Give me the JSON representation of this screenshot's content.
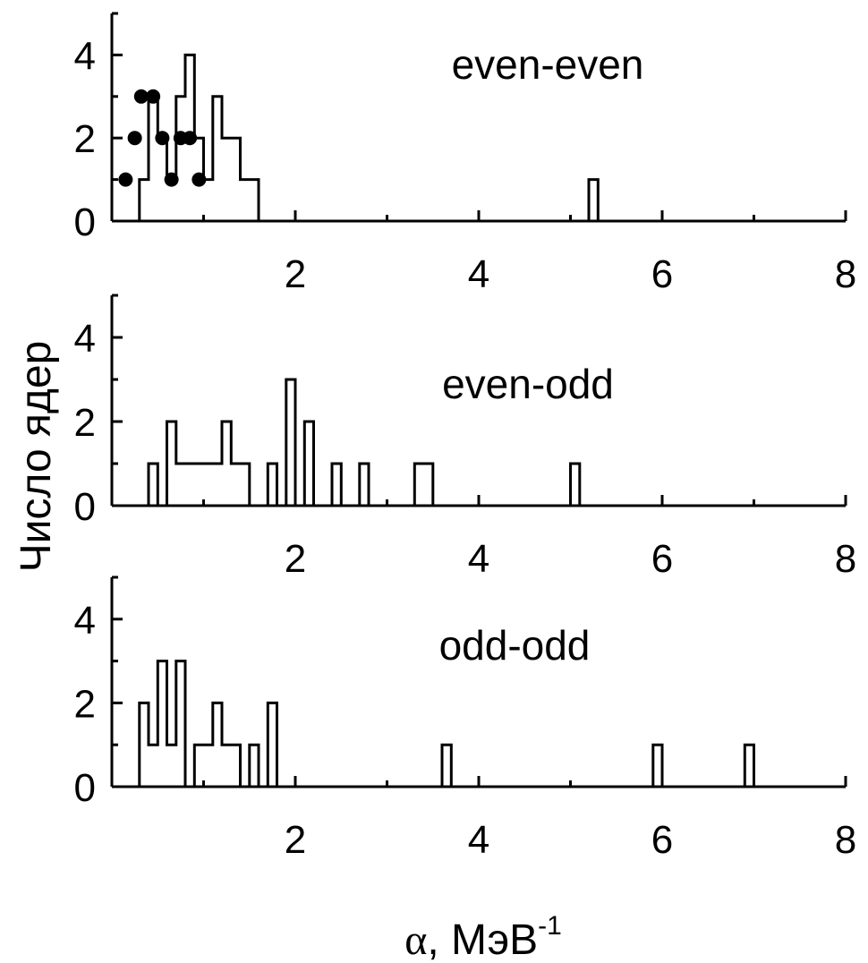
{
  "chart_data": [
    {
      "type": "bar",
      "panel_label": "even-even",
      "xlim": [
        0,
        8
      ],
      "ylim": [
        0,
        5
      ],
      "x_ticks": [
        "2",
        "4",
        "6",
        "8"
      ],
      "y_ticks": [
        "0",
        "2",
        "4"
      ],
      "histogram_steps": [
        [
          0.3,
          0
        ],
        [
          0.3,
          1
        ],
        [
          0.4,
          1
        ],
        [
          0.4,
          3
        ],
        [
          0.5,
          3
        ],
        [
          0.5,
          2
        ],
        [
          0.6,
          2
        ],
        [
          0.6,
          1
        ],
        [
          0.7,
          1
        ],
        [
          0.7,
          3
        ],
        [
          0.8,
          3
        ],
        [
          0.8,
          4
        ],
        [
          0.9,
          4
        ],
        [
          0.9,
          2
        ],
        [
          1.0,
          2
        ],
        [
          1.0,
          1
        ],
        [
          1.1,
          1
        ],
        [
          1.1,
          3
        ],
        [
          1.2,
          3
        ],
        [
          1.2,
          2
        ],
        [
          1.4,
          2
        ],
        [
          1.4,
          1
        ],
        [
          1.6,
          1
        ],
        [
          1.6,
          0
        ],
        [
          5.2,
          0
        ],
        [
          5.2,
          1
        ],
        [
          5.3,
          1
        ],
        [
          5.3,
          0
        ],
        [
          8.0,
          0
        ]
      ],
      "scatter_points": [
        {
          "x": 0.15,
          "y": 1
        },
        {
          "x": 0.25,
          "y": 2
        },
        {
          "x": 0.32,
          "y": 3
        },
        {
          "x": 0.45,
          "y": 3
        },
        {
          "x": 0.55,
          "y": 2
        },
        {
          "x": 0.65,
          "y": 1
        },
        {
          "x": 0.75,
          "y": 2
        },
        {
          "x": 0.85,
          "y": 2
        },
        {
          "x": 0.95,
          "y": 1
        }
      ]
    },
    {
      "type": "bar",
      "panel_label": "even-odd",
      "xlim": [
        0,
        8
      ],
      "ylim": [
        0,
        5
      ],
      "x_ticks": [
        "2",
        "4",
        "6",
        "8"
      ],
      "y_ticks": [
        "0",
        "2",
        "4"
      ],
      "histogram_steps": [
        [
          0.4,
          0
        ],
        [
          0.4,
          1
        ],
        [
          0.5,
          1
        ],
        [
          0.5,
          0
        ],
        [
          0.6,
          0
        ],
        [
          0.6,
          2
        ],
        [
          0.7,
          2
        ],
        [
          0.7,
          1
        ],
        [
          1.2,
          1
        ],
        [
          1.2,
          2
        ],
        [
          1.3,
          2
        ],
        [
          1.3,
          1
        ],
        [
          1.5,
          1
        ],
        [
          1.5,
          0
        ],
        [
          1.7,
          0
        ],
        [
          1.7,
          1
        ],
        [
          1.8,
          1
        ],
        [
          1.8,
          0
        ],
        [
          1.9,
          0
        ],
        [
          1.9,
          3
        ],
        [
          2.0,
          3
        ],
        [
          2.0,
          0
        ],
        [
          2.1,
          0
        ],
        [
          2.1,
          2
        ],
        [
          2.2,
          2
        ],
        [
          2.2,
          0
        ],
        [
          2.4,
          0
        ],
        [
          2.4,
          1
        ],
        [
          2.5,
          1
        ],
        [
          2.5,
          0
        ],
        [
          2.7,
          0
        ],
        [
          2.7,
          1
        ],
        [
          2.8,
          1
        ],
        [
          2.8,
          0
        ],
        [
          3.3,
          0
        ],
        [
          3.3,
          1
        ],
        [
          3.5,
          1
        ],
        [
          3.5,
          0
        ],
        [
          5.0,
          0
        ],
        [
          5.0,
          1
        ],
        [
          5.1,
          1
        ],
        [
          5.1,
          0
        ],
        [
          8.0,
          0
        ]
      ]
    },
    {
      "type": "bar",
      "panel_label": "odd-odd",
      "xlim": [
        0,
        8
      ],
      "ylim": [
        0,
        5
      ],
      "x_ticks": [
        "2",
        "4",
        "6",
        "8"
      ],
      "y_ticks": [
        "0",
        "2",
        "4"
      ],
      "histogram_steps": [
        [
          0.3,
          0
        ],
        [
          0.3,
          2
        ],
        [
          0.4,
          2
        ],
        [
          0.4,
          1
        ],
        [
          0.5,
          1
        ],
        [
          0.5,
          3
        ],
        [
          0.6,
          3
        ],
        [
          0.6,
          1
        ],
        [
          0.7,
          1
        ],
        [
          0.7,
          3
        ],
        [
          0.8,
          3
        ],
        [
          0.8,
          0
        ],
        [
          0.9,
          0
        ],
        [
          0.9,
          1
        ],
        [
          1.1,
          1
        ],
        [
          1.1,
          2
        ],
        [
          1.2,
          2
        ],
        [
          1.2,
          1
        ],
        [
          1.4,
          1
        ],
        [
          1.4,
          0
        ],
        [
          1.5,
          0
        ],
        [
          1.5,
          1
        ],
        [
          1.6,
          1
        ],
        [
          1.6,
          0
        ],
        [
          1.7,
          0
        ],
        [
          1.7,
          2
        ],
        [
          1.8,
          2
        ],
        [
          1.8,
          0
        ],
        [
          3.6,
          0
        ],
        [
          3.6,
          1
        ],
        [
          3.7,
          1
        ],
        [
          3.7,
          0
        ],
        [
          5.9,
          0
        ],
        [
          5.9,
          1
        ],
        [
          6.0,
          1
        ],
        [
          6.0,
          0
        ],
        [
          6.9,
          0
        ],
        [
          6.9,
          1
        ],
        [
          7.0,
          1
        ],
        [
          7.0,
          0
        ],
        [
          8.0,
          0
        ]
      ]
    }
  ],
  "axes": {
    "ylabel": "Число ядер",
    "xlabel_symbol": "α",
    "xlabel_unit": ", МэВ",
    "xlabel_exponent": "-1"
  }
}
